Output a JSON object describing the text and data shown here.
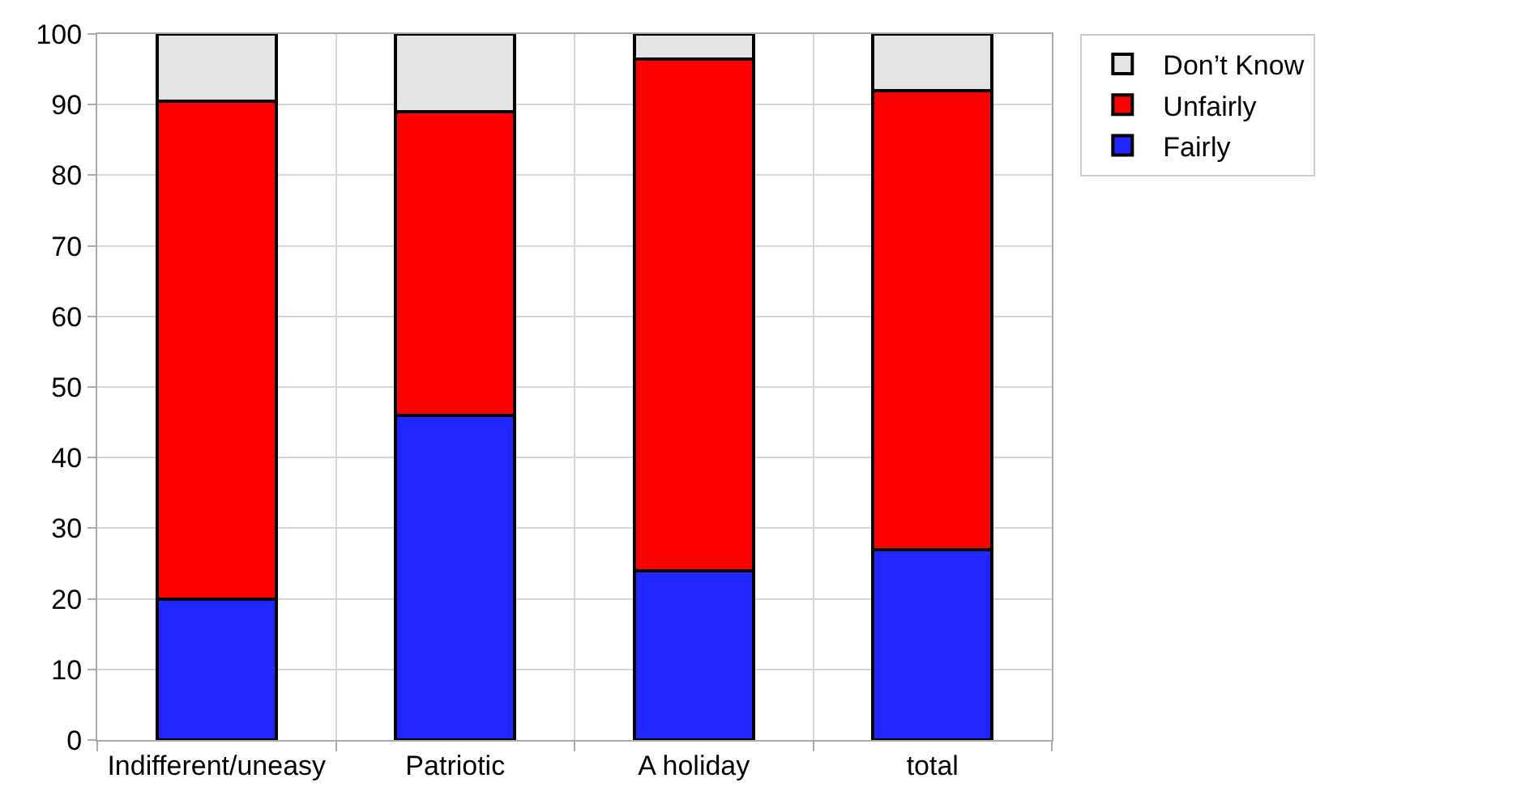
{
  "chart_data": {
    "type": "bar",
    "stacked": true,
    "categories": [
      "Indifferent/uneasy",
      "Patriotic",
      "A holiday",
      "total"
    ],
    "series": [
      {
        "name": "Fairly",
        "color": "#1f26ff",
        "values": [
          20,
          46,
          24,
          27
        ]
      },
      {
        "name": "Unfairly",
        "color": "#ff0000",
        "values": [
          70.5,
          43,
          72.5,
          65
        ]
      },
      {
        "name": "Don’t Know",
        "color": "#e4e4e4",
        "values": [
          9.5,
          11,
          3.5,
          8
        ]
      }
    ],
    "ylim": [
      0,
      100
    ],
    "yticks": [
      0,
      10,
      20,
      30,
      40,
      50,
      60,
      70,
      80,
      90,
      100
    ],
    "grid": true,
    "legend": "top right"
  }
}
